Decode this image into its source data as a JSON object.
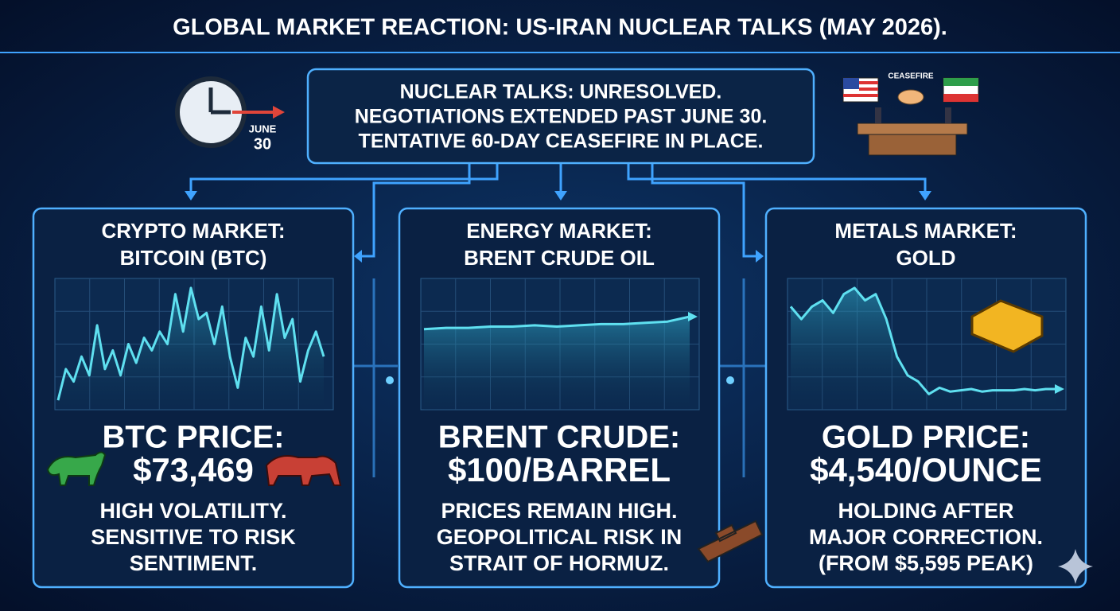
{
  "title": "GLOBAL MARKET REACTION: US-IRAN NUCLEAR TALKS (MAY 2026).",
  "summary": {
    "lines": [
      "NUCLEAR TALKS: UNRESOLVED.",
      "NEGOTIATIONS EXTENDED PAST JUNE 30.",
      "TENTATIVE 60-DAY CEASEFIRE IN PLACE."
    ],
    "clock_month": "JUNE",
    "clock_day": "30",
    "badge": "CEASEFIRE"
  },
  "panels": [
    {
      "title": [
        "CRYPTO MARKET:",
        "BITCOIN (BTC)"
      ],
      "price_label": "BTC PRICE:",
      "price": "$73,469",
      "notes": [
        "HIGH VOLATILITY.",
        "SENSITIVE TO RISK",
        "SENTIMENT."
      ],
      "trend": {
        "values": [
          5,
          30,
          20,
          40,
          25,
          65,
          30,
          45,
          25,
          50,
          35,
          55,
          45,
          60,
          50,
          90,
          60,
          95,
          70,
          75,
          50,
          80,
          40,
          15,
          55,
          40,
          80,
          45,
          90,
          55,
          70,
          20,
          45,
          60,
          40
        ],
        "ylim": [
          0,
          100
        ]
      }
    },
    {
      "title": [
        "ENERGY MARKET:",
        "BRENT CRUDE OIL"
      ],
      "price_label": "BRENT CRUDE:",
      "price": "$100/BARREL",
      "notes": [
        "PRICES REMAIN HIGH.",
        "GEOPOLITICAL RISK IN",
        "STRAIT OF HORMUZ."
      ],
      "trend": {
        "values": [
          62,
          63,
          63,
          64,
          64,
          65,
          64,
          65,
          66,
          66,
          67,
          68,
          72
        ],
        "ylim": [
          0,
          100
        ]
      }
    },
    {
      "title": [
        "METALS MARKET:",
        "GOLD"
      ],
      "price_label": "GOLD PRICE:",
      "price": "$4,540/OUNCE",
      "notes": [
        "HOLDING AFTER",
        "MAJOR CORRECTION.",
        "(FROM $5,595 PEAK)"
      ],
      "trend": {
        "values": [
          80,
          70,
          80,
          85,
          75,
          90,
          95,
          85,
          90,
          70,
          40,
          25,
          20,
          10,
          15,
          12,
          13,
          14,
          12,
          13,
          13,
          13,
          14,
          13,
          14,
          14
        ],
        "ylim": [
          0,
          100
        ]
      }
    }
  ]
}
